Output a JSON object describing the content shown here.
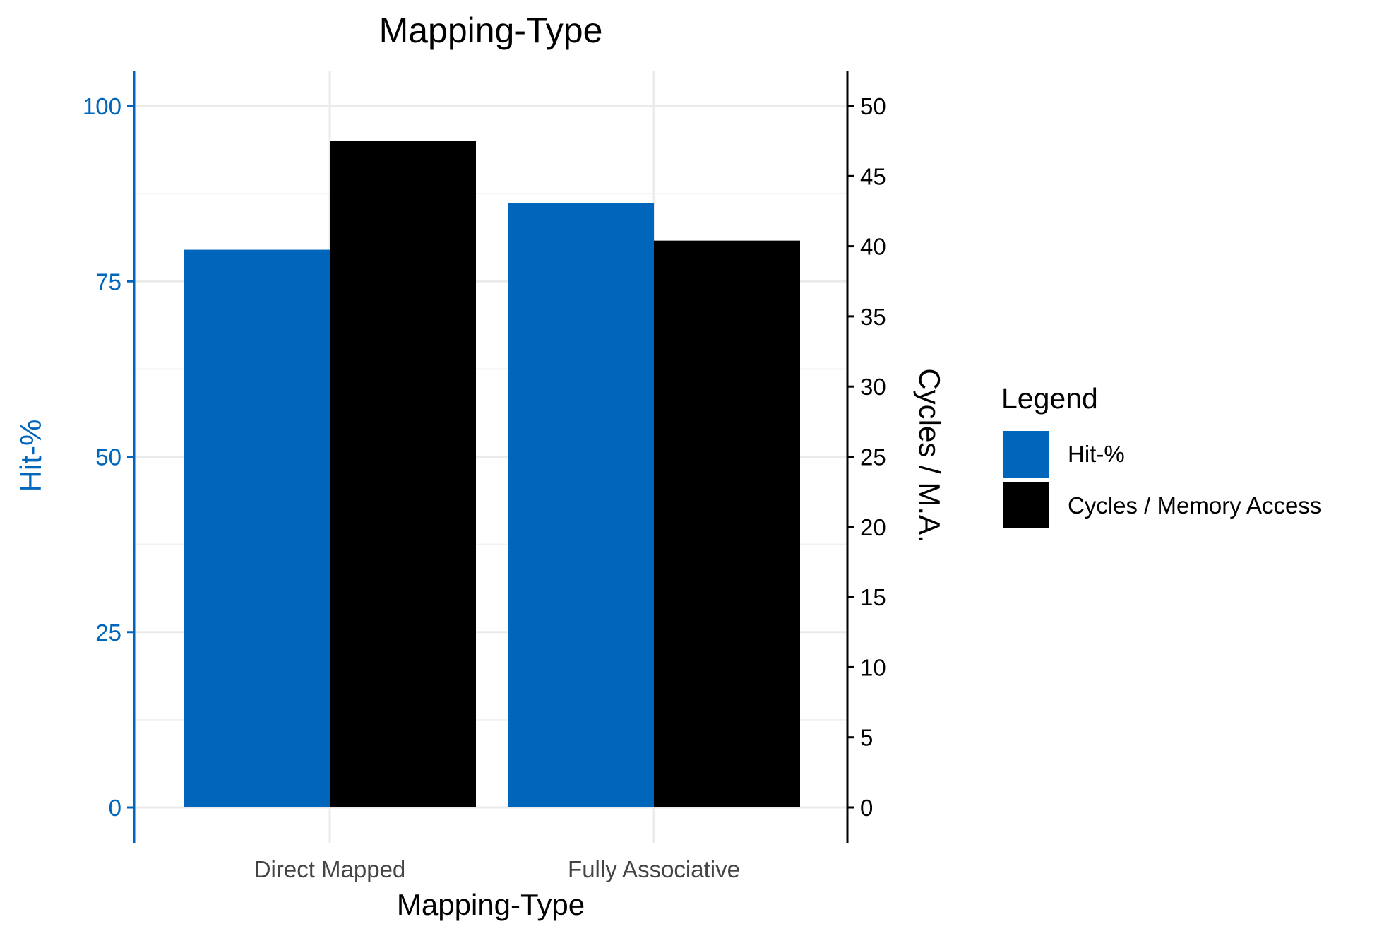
{
  "chart_data": {
    "type": "bar",
    "title": "Mapping-Type",
    "xlabel": "Mapping-Type",
    "ylabel": "Hit-%",
    "y2label": "Cycles / M.A.",
    "categories": [
      "Direct Mapped",
      "Fully Associative"
    ],
    "ylim": [
      0,
      100
    ],
    "y2lim": [
      0,
      50
    ],
    "yticks": [
      0,
      25,
      50,
      75,
      100
    ],
    "y2ticks": [
      0,
      5,
      10,
      15,
      20,
      25,
      30,
      35,
      40,
      45,
      50
    ],
    "grid": true,
    "legend": {
      "title": "Legend",
      "placement": "right"
    },
    "series": [
      {
        "name": "Hit-%",
        "axis": "left",
        "color": "#0066bb",
        "values": [
          79.5,
          86.2
        ]
      },
      {
        "name": "Cycles / Memory Access",
        "axis": "right",
        "color": "#000000",
        "values": [
          47.5,
          40.4
        ]
      }
    ]
  }
}
